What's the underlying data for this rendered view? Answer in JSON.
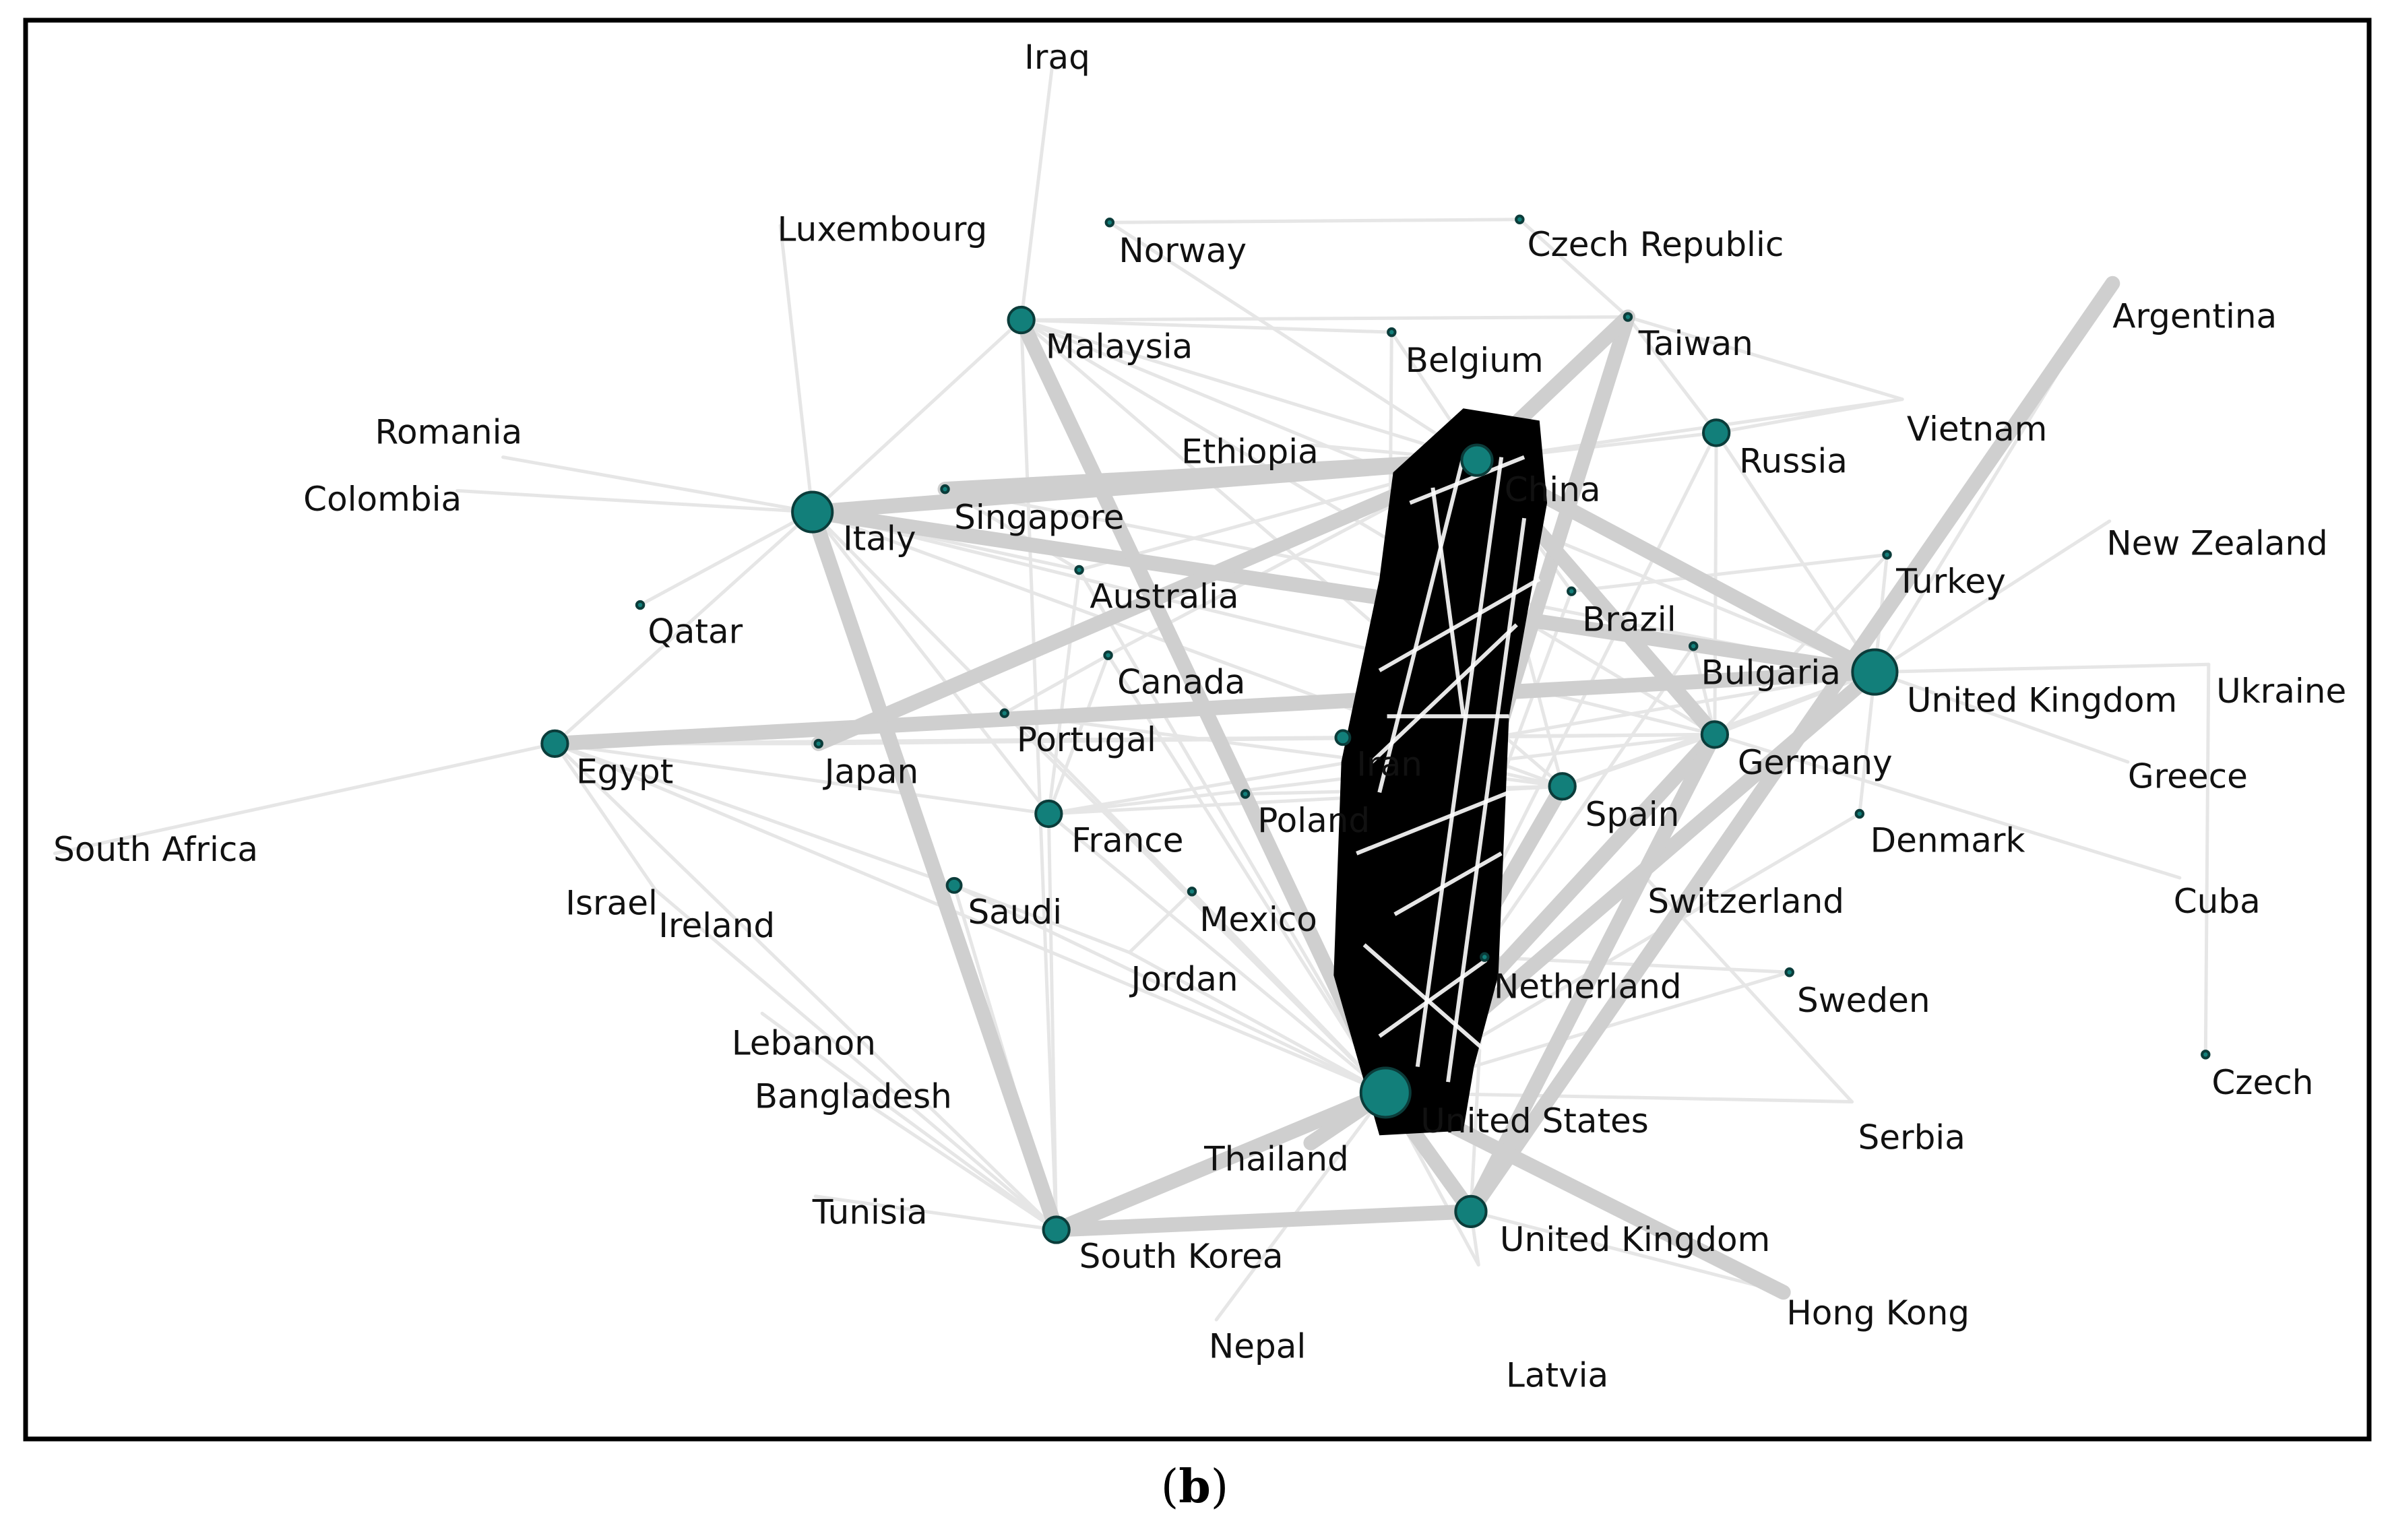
{
  "caption": {
    "open": "(",
    "letter": "b",
    "close": ")"
  },
  "colors": {
    "node_fill": "#127f7a",
    "node_stroke": "#0b3c3a",
    "edge_light": "#e6e6e6",
    "edge_mid": "#cfcfcf",
    "edge_strong": "#000000",
    "edge_strong_overlay": "#ffffff",
    "frame": "#000000"
  },
  "nodes": [
    {
      "id": "iraq",
      "label": "Iraq",
      "degree": 0
    },
    {
      "id": "luxembourg",
      "label": "Luxembourg",
      "degree": 0
    },
    {
      "id": "norway",
      "label": "Norway",
      "degree": 1
    },
    {
      "id": "czech_republic",
      "label": "Czech Republic",
      "degree": 1
    },
    {
      "id": "malaysia",
      "label": "Malaysia",
      "degree": 4
    },
    {
      "id": "belgium",
      "label": "Belgium",
      "degree": 1
    },
    {
      "id": "taiwan",
      "label": "Taiwan",
      "degree": 1
    },
    {
      "id": "argentina",
      "label": "Argentina",
      "degree": 0
    },
    {
      "id": "romania",
      "label": "Romania",
      "degree": 0
    },
    {
      "id": "ethiopia",
      "label": "Ethiopia",
      "degree": 0
    },
    {
      "id": "china",
      "label": "China",
      "degree": 5
    },
    {
      "id": "russia",
      "label": "Russia",
      "degree": 4
    },
    {
      "id": "vietnam",
      "label": "Vietnam",
      "degree": 0
    },
    {
      "id": "colombia",
      "label": "Colombia",
      "degree": 0
    },
    {
      "id": "italy",
      "label": "Italy",
      "degree": 6
    },
    {
      "id": "singapore",
      "label": "Singapore",
      "degree": 1
    },
    {
      "id": "new_zealand",
      "label": "New Zealand",
      "degree": 0
    },
    {
      "id": "turkey",
      "label": "Turkey",
      "degree": 1
    },
    {
      "id": "australia",
      "label": "Australia",
      "degree": 1
    },
    {
      "id": "brazil",
      "label": "Brazil",
      "degree": 1
    },
    {
      "id": "qatar",
      "label": "Qatar",
      "degree": 1
    },
    {
      "id": "bulgaria",
      "label": "Bulgaria",
      "degree": 1
    },
    {
      "id": "canada",
      "label": "Canada",
      "degree": 1
    },
    {
      "id": "uk_east",
      "label": "United Kingdom",
      "degree": 7
    },
    {
      "id": "ukraine",
      "label": "Ukraine",
      "degree": 0
    },
    {
      "id": "portugal",
      "label": "Portugal",
      "degree": 1
    },
    {
      "id": "iran",
      "label": "Iran",
      "degree": 2
    },
    {
      "id": "germany",
      "label": "Germany",
      "degree": 4
    },
    {
      "id": "egypt",
      "label": "Egypt",
      "degree": 4
    },
    {
      "id": "japan",
      "label": "Japan",
      "degree": 1
    },
    {
      "id": "greece",
      "label": "Greece",
      "degree": 0
    },
    {
      "id": "spain",
      "label": "Spain",
      "degree": 4
    },
    {
      "id": "poland",
      "label": "Poland",
      "degree": 1
    },
    {
      "id": "france",
      "label": "France",
      "degree": 4
    },
    {
      "id": "denmark",
      "label": "Denmark",
      "degree": 1
    },
    {
      "id": "south_africa",
      "label": "South Africa",
      "degree": 0
    },
    {
      "id": "israel",
      "label": "Israel",
      "degree": 0
    },
    {
      "id": "ireland",
      "label": "Ireland",
      "degree": 0
    },
    {
      "id": "saudi",
      "label": "Saudi",
      "degree": 2
    },
    {
      "id": "mexico",
      "label": "Mexico",
      "degree": 1
    },
    {
      "id": "switzerland",
      "label": "Switzerland",
      "degree": 0
    },
    {
      "id": "cuba",
      "label": "Cuba",
      "degree": 0
    },
    {
      "id": "jordan",
      "label": "Jordan",
      "degree": 0
    },
    {
      "id": "netherland",
      "label": "Netherland",
      "degree": 1
    },
    {
      "id": "sweden",
      "label": "Sweden",
      "degree": 1
    },
    {
      "id": "lebanon",
      "label": "Lebanon",
      "degree": 0
    },
    {
      "id": "czech",
      "label": "Czech",
      "degree": 1
    },
    {
      "id": "bangladesh",
      "label": "Bangladesh",
      "degree": 0
    },
    {
      "id": "united_states",
      "label": "United States",
      "degree": 8
    },
    {
      "id": "thailand",
      "label": "Thailand",
      "degree": 0
    },
    {
      "id": "serbia",
      "label": "Serbia",
      "degree": 0
    },
    {
      "id": "tunisia",
      "label": "Tunisia",
      "degree": 0
    },
    {
      "id": "south_korea",
      "label": "South Korea",
      "degree": 4
    },
    {
      "id": "uk_south",
      "label": "United Kingdom",
      "degree": 5
    },
    {
      "id": "hong_kong",
      "label": "Hong Kong",
      "degree": 0
    },
    {
      "id": "nepal",
      "label": "Nepal",
      "degree": 0
    },
    {
      "id": "latvia",
      "label": "Latvia",
      "degree": 0
    }
  ],
  "edges": [
    [
      "china",
      "united_states",
      3
    ],
    [
      "china",
      "netherland",
      3
    ],
    [
      "china",
      "iran",
      3
    ],
    [
      "united_states",
      "iran",
      3
    ],
    [
      "united_states",
      "south_korea",
      2
    ],
    [
      "united_states",
      "uk_south",
      2
    ],
    [
      "south_korea",
      "uk_south",
      2
    ],
    [
      "united_states",
      "germany",
      2
    ],
    [
      "united_states",
      "spain",
      2
    ],
    [
      "united_states",
      "uk_east",
      2
    ],
    [
      "united_states",
      "taiwan",
      2
    ],
    [
      "china",
      "taiwan",
      2
    ],
    [
      "united_states",
      "thailand",
      2
    ],
    [
      "uk_south",
      "germany",
      2
    ],
    [
      "uk_south",
      "argentina",
      2
    ],
    [
      "south_korea",
      "italy",
      2
    ],
    [
      "china",
      "italy",
      2
    ],
    [
      "china",
      "singapore",
      2
    ],
    [
      "china",
      "germany",
      2
    ],
    [
      "china",
      "uk_east",
      2
    ],
    [
      "italy",
      "uk_east",
      2
    ],
    [
      "malaysia",
      "united_states",
      2
    ],
    [
      "egypt",
      "uk_east",
      2
    ],
    [
      "japan",
      "china",
      2
    ],
    [
      "united_states",
      "hong_kong",
      2
    ],
    [
      "china",
      "russia",
      1
    ],
    [
      "china",
      "malaysia",
      1
    ],
    [
      "china",
      "brazil",
      1
    ],
    [
      "china",
      "spain",
      1
    ],
    [
      "china",
      "australia",
      1
    ],
    [
      "china",
      "canada",
      1
    ],
    [
      "china",
      "belgium",
      1
    ],
    [
      "china",
      "vietnam",
      1
    ],
    [
      "united_states",
      "italy",
      1
    ],
    [
      "united_states",
      "france",
      1
    ],
    [
      "united_states",
      "egypt",
      1
    ],
    [
      "united_states",
      "saudi",
      1
    ],
    [
      "united_states",
      "portugal",
      1
    ],
    [
      "united_states",
      "mexico",
      1
    ],
    [
      "united_states",
      "jordan",
      1
    ],
    [
      "united_states",
      "poland",
      1
    ],
    [
      "united_states",
      "sweden",
      1
    ],
    [
      "united_states",
      "switzerland",
      1
    ],
    [
      "united_states",
      "bulgaria",
      1
    ],
    [
      "united_states",
      "turkey",
      1
    ],
    [
      "united_states",
      "russia",
      1
    ],
    [
      "united_states",
      "denmark",
      1
    ],
    [
      "united_states",
      "belgium",
      1
    ],
    [
      "united_states",
      "brazil",
      1
    ],
    [
      "united_states",
      "australia",
      1
    ],
    [
      "united_states",
      "canada",
      1
    ],
    [
      "united_states",
      "latvia",
      1
    ],
    [
      "united_states",
      "nepal",
      1
    ],
    [
      "united_states",
      "serbia",
      1
    ],
    [
      "south_korea",
      "egypt",
      1
    ],
    [
      "south_korea",
      "france",
      1
    ],
    [
      "south_korea",
      "saudi",
      1
    ],
    [
      "south_korea",
      "malaysia",
      1
    ],
    [
      "south_korea",
      "israel",
      1
    ],
    [
      "south_korea",
      "tunisia",
      1
    ],
    [
      "south_korea",
      "lebanon",
      1
    ],
    [
      "south_korea",
      "bangladesh",
      1
    ],
    [
      "italy",
      "malaysia",
      1
    ],
    [
      "italy",
      "egypt",
      1
    ],
    [
      "italy",
      "france",
      1
    ],
    [
      "italy",
      "spain",
      1
    ],
    [
      "italy",
      "germany",
      1
    ],
    [
      "italy",
      "australia",
      1
    ],
    [
      "italy",
      "romania",
      1
    ],
    [
      "italy",
      "colombia",
      1
    ],
    [
      "italy",
      "qatar",
      1
    ],
    [
      "italy",
      "luxembourg",
      1
    ],
    [
      "malaysia",
      "iraq",
      1
    ],
    [
      "malaysia",
      "germany",
      1
    ],
    [
      "malaysia",
      "uk_east",
      1
    ],
    [
      "malaysia",
      "spain",
      1
    ],
    [
      "malaysia",
      "belgium",
      1
    ],
    [
      "malaysia",
      "taiwan",
      1
    ],
    [
      "uk_east",
      "germany",
      1
    ],
    [
      "uk_east",
      "spain",
      1
    ],
    [
      "uk_east",
      "france",
      1
    ],
    [
      "uk_east",
      "russia",
      1
    ],
    [
      "uk_east",
      "turkey",
      1
    ],
    [
      "uk_east",
      "argentina",
      1
    ],
    [
      "uk_east",
      "new_zealand",
      1
    ],
    [
      "uk_east",
      "ukraine",
      1
    ],
    [
      "uk_east",
      "greece",
      1
    ],
    [
      "uk_east",
      "denmark",
      1
    ],
    [
      "uk_east",
      "bulgaria",
      1
    ],
    [
      "uk_east",
      "portugal",
      1
    ],
    [
      "germany",
      "spain",
      1
    ],
    [
      "germany",
      "france",
      1
    ],
    [
      "germany",
      "russia",
      1
    ],
    [
      "germany",
      "egypt",
      1
    ],
    [
      "germany",
      "japan",
      1
    ],
    [
      "germany",
      "cuba",
      1
    ],
    [
      "spain",
      "france",
      1
    ],
    [
      "spain",
      "poland",
      1
    ],
    [
      "spain",
      "portugal",
      1
    ],
    [
      "egypt",
      "france",
      1
    ],
    [
      "egypt",
      "saudi",
      1
    ],
    [
      "egypt",
      "south_africa",
      1
    ],
    [
      "egypt",
      "ireland",
      1
    ],
    [
      "egypt",
      "japan",
      1
    ],
    [
      "france",
      "australia",
      1
    ],
    [
      "france",
      "canada",
      1
    ],
    [
      "russia",
      "taiwan",
      1
    ],
    [
      "russia",
      "vietnam",
      1
    ],
    [
      "taiwan",
      "czech_republic",
      1
    ],
    [
      "taiwan",
      "vietnam",
      1
    ],
    [
      "norway",
      "czech_republic",
      1
    ],
    [
      "norway",
      "china",
      1
    ],
    [
      "ukraine",
      "czech",
      1
    ],
    [
      "uk_south",
      "hong_kong",
      1
    ],
    [
      "uk_south",
      "netherland",
      1
    ],
    [
      "uk_south",
      "latvia",
      1
    ],
    [
      "saudi",
      "jordan",
      1
    ],
    [
      "iran",
      "spain",
      1
    ],
    [
      "iran",
      "germany",
      1
    ],
    [
      "singapore",
      "australia",
      1
    ],
    [
      "singapore",
      "uk_east",
      1
    ],
    [
      "canada",
      "portugal",
      1
    ],
    [
      "netherland",
      "sweden",
      1
    ],
    [
      "switzerland",
      "serbia",
      1
    ],
    [
      "mexico",
      "jordan",
      1
    ],
    [
      "ethiopia",
      "china",
      1
    ],
    [
      "bulgaria",
      "germany",
      1
    ],
    [
      "brazil",
      "turkey",
      1
    ]
  ]
}
